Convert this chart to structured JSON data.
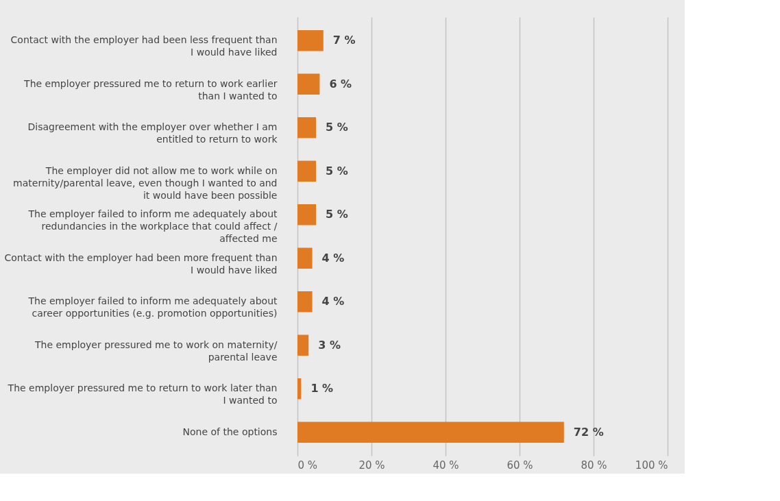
{
  "chart_data": {
    "type": "bar",
    "orientation": "horizontal",
    "categories": [
      "Contact with the employer had been less frequent than I would have liked",
      "The employer pressured me to return to work earlier than I wanted to",
      "Disagreement with the employer over whether I am entitled to return to work",
      "The employer did not allow me to work while on maternity/parental leave, even though I wanted to and it would have been possible",
      "The employer failed to inform me adequately about redundancies in the workplace that could affect / affected me",
      "Contact with the employer had been more frequent than I would have liked",
      "The employer failed to inform me adequately about career opportunities (e.g. promotion opportunities)",
      "The employer pressured me to work on maternity/ parental leave",
      "The employer pressured me to return to work later than I wanted to",
      "None of the options"
    ],
    "values": [
      7,
      6,
      5,
      5,
      5,
      4,
      4,
      3,
      1,
      72
    ],
    "value_labels": [
      "7 %",
      "6 %",
      "5 %",
      "5 %",
      "5 %",
      "4 %",
      "4 %",
      "3 %",
      "1 %",
      "72 %"
    ],
    "color": "#e07b24",
    "xlim": [
      0,
      100
    ],
    "xticks": [
      {
        "value": 0,
        "label": "0 %"
      },
      {
        "value": 20,
        "label": "20 %"
      },
      {
        "value": 40,
        "label": "40 %"
      },
      {
        "value": 60,
        "label": "60 %"
      },
      {
        "value": 80,
        "label": "80 %"
      },
      {
        "value": 100,
        "label": "100 %"
      }
    ],
    "grid": "x"
  }
}
